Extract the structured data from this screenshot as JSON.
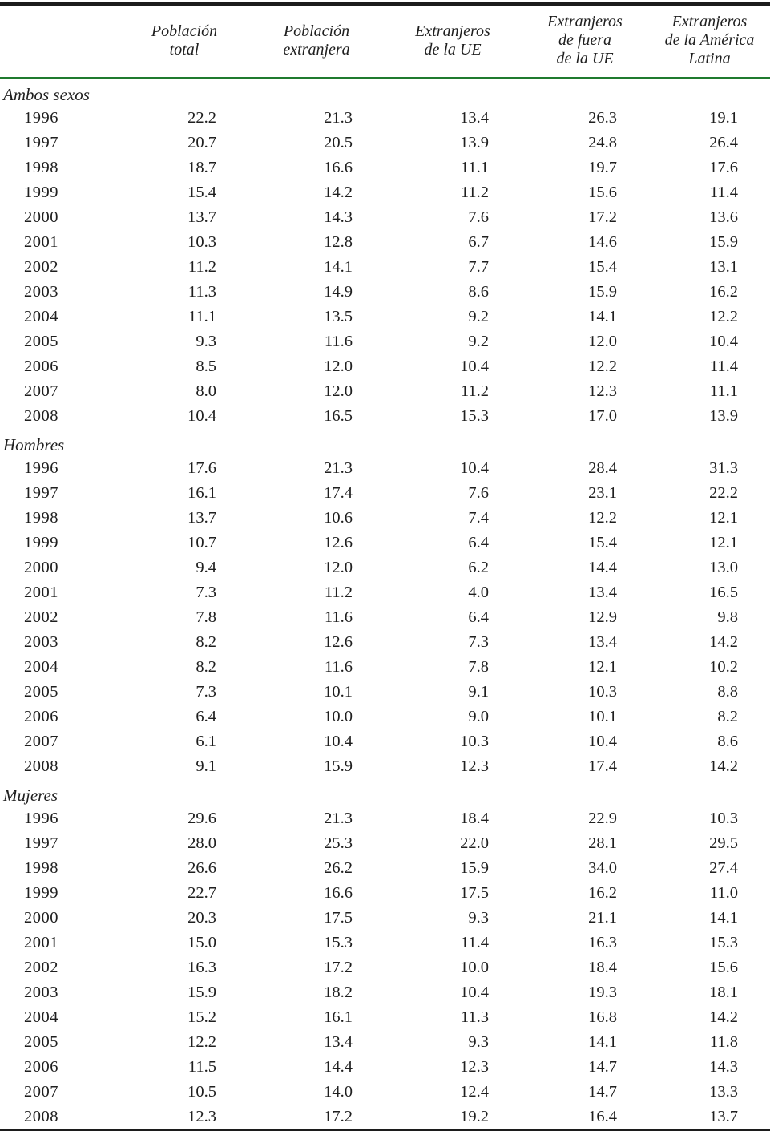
{
  "colors": {
    "header_rule_green": "#1f7a2e",
    "top_rule": "#1c1c1c",
    "bottom_rule": "#1c1c1c",
    "text": "#1f1f1f"
  },
  "table": {
    "columns": [
      "Población\ntotal",
      "Población\nextranjera",
      "Extranjeros\nde la UE",
      "Extranjeros\nde fuera\nde la UE",
      "Extranjeros\nde la América\nLatina"
    ],
    "sections": [
      {
        "label": "Ambos sexos",
        "rows": [
          {
            "year": "1996",
            "values": [
              "22.2",
              "21.3",
              "13.4",
              "26.3",
              "19.1"
            ]
          },
          {
            "year": "1997",
            "values": [
              "20.7",
              "20.5",
              "13.9",
              "24.8",
              "26.4"
            ]
          },
          {
            "year": "1998",
            "values": [
              "18.7",
              "16.6",
              "11.1",
              "19.7",
              "17.6"
            ]
          },
          {
            "year": "1999",
            "values": [
              "15.4",
              "14.2",
              "11.2",
              "15.6",
              "11.4"
            ]
          },
          {
            "year": "2000",
            "values": [
              "13.7",
              "14.3",
              "7.6",
              "17.2",
              "13.6"
            ]
          },
          {
            "year": "2001",
            "values": [
              "10.3",
              "12.8",
              "6.7",
              "14.6",
              "15.9"
            ]
          },
          {
            "year": "2002",
            "values": [
              "11.2",
              "14.1",
              "7.7",
              "15.4",
              "13.1"
            ]
          },
          {
            "year": "2003",
            "values": [
              "11.3",
              "14.9",
              "8.6",
              "15.9",
              "16.2"
            ]
          },
          {
            "year": "2004",
            "values": [
              "11.1",
              "13.5",
              "9.2",
              "14.1",
              "12.2"
            ]
          },
          {
            "year": "2005",
            "values": [
              "9.3",
              "11.6",
              "9.2",
              "12.0",
              "10.4"
            ]
          },
          {
            "year": "2006",
            "values": [
              "8.5",
              "12.0",
              "10.4",
              "12.2",
              "11.4"
            ]
          },
          {
            "year": "2007",
            "values": [
              "8.0",
              "12.0",
              "11.2",
              "12.3",
              "11.1"
            ]
          },
          {
            "year": "2008",
            "values": [
              "10.4",
              "16.5",
              "15.3",
              "17.0",
              "13.9"
            ]
          }
        ]
      },
      {
        "label": "Hombres",
        "rows": [
          {
            "year": "1996",
            "values": [
              "17.6",
              "21.3",
              "10.4",
              "28.4",
              "31.3"
            ]
          },
          {
            "year": "1997",
            "values": [
              "16.1",
              "17.4",
              "7.6",
              "23.1",
              "22.2"
            ]
          },
          {
            "year": "1998",
            "values": [
              "13.7",
              "10.6",
              "7.4",
              "12.2",
              "12.1"
            ]
          },
          {
            "year": "1999",
            "values": [
              "10.7",
              "12.6",
              "6.4",
              "15.4",
              "12.1"
            ]
          },
          {
            "year": "2000",
            "values": [
              "9.4",
              "12.0",
              "6.2",
              "14.4",
              "13.0"
            ]
          },
          {
            "year": "2001",
            "values": [
              "7.3",
              "11.2",
              "4.0",
              "13.4",
              "16.5"
            ]
          },
          {
            "year": "2002",
            "values": [
              "7.8",
              "11.6",
              "6.4",
              "12.9",
              "9.8"
            ]
          },
          {
            "year": "2003",
            "values": [
              "8.2",
              "12.6",
              "7.3",
              "13.4",
              "14.2"
            ]
          },
          {
            "year": "2004",
            "values": [
              "8.2",
              "11.6",
              "7.8",
              "12.1",
              "10.2"
            ]
          },
          {
            "year": "2005",
            "values": [
              "7.3",
              "10.1",
              "9.1",
              "10.3",
              "8.8"
            ]
          },
          {
            "year": "2006",
            "values": [
              "6.4",
              "10.0",
              "9.0",
              "10.1",
              "8.2"
            ]
          },
          {
            "year": "2007",
            "values": [
              "6.1",
              "10.4",
              "10.3",
              "10.4",
              "8.6"
            ]
          },
          {
            "year": "2008",
            "values": [
              "9.1",
              "15.9",
              "12.3",
              "17.4",
              "14.2"
            ]
          }
        ]
      },
      {
        "label": "Mujeres",
        "rows": [
          {
            "year": "1996",
            "values": [
              "29.6",
              "21.3",
              "18.4",
              "22.9",
              "10.3"
            ]
          },
          {
            "year": "1997",
            "values": [
              "28.0",
              "25.3",
              "22.0",
              "28.1",
              "29.5"
            ]
          },
          {
            "year": "1998",
            "values": [
              "26.6",
              "26.2",
              "15.9",
              "34.0",
              "27.4"
            ]
          },
          {
            "year": "1999",
            "values": [
              "22.7",
              "16.6",
              "17.5",
              "16.2",
              "11.0"
            ]
          },
          {
            "year": "2000",
            "values": [
              "20.3",
              "17.5",
              "9.3",
              "21.1",
              "14.1"
            ]
          },
          {
            "year": "2001",
            "values": [
              "15.0",
              "15.3",
              "11.4",
              "16.3",
              "15.3"
            ]
          },
          {
            "year": "2002",
            "values": [
              "16.3",
              "17.2",
              "10.0",
              "18.4",
              "15.6"
            ]
          },
          {
            "year": "2003",
            "values": [
              "15.9",
              "18.2",
              "10.4",
              "19.3",
              "18.1"
            ]
          },
          {
            "year": "2004",
            "values": [
              "15.2",
              "16.1",
              "11.3",
              "16.8",
              "14.2"
            ]
          },
          {
            "year": "2005",
            "values": [
              "12.2",
              "13.4",
              "9.3",
              "14.1",
              "11.8"
            ]
          },
          {
            "year": "2006",
            "values": [
              "11.5",
              "14.4",
              "12.3",
              "14.7",
              "14.3"
            ]
          },
          {
            "year": "2007",
            "values": [
              "10.5",
              "14.0",
              "12.4",
              "14.7",
              "13.3"
            ]
          },
          {
            "year": "2008",
            "values": [
              "12.3",
              "17.2",
              "19.2",
              "16.4",
              "13.7"
            ]
          }
        ]
      }
    ]
  }
}
